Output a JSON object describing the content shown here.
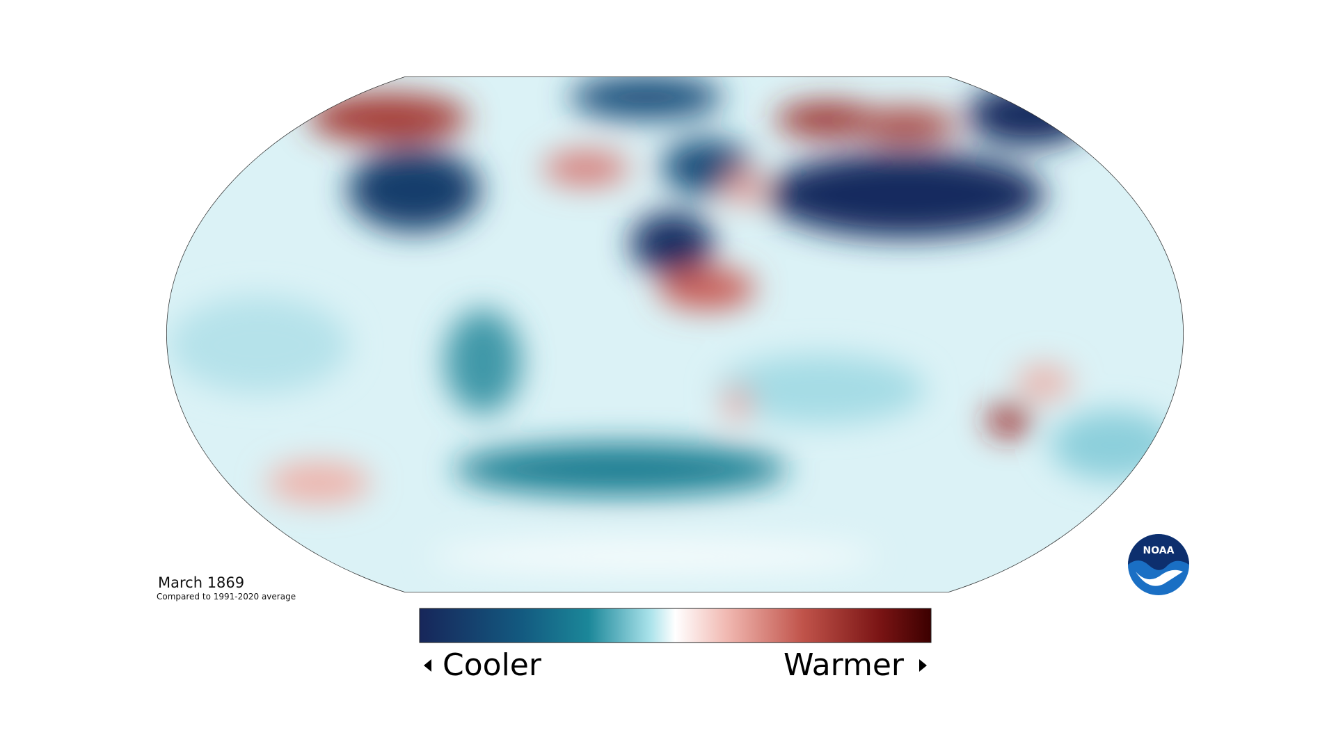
{
  "caption": {
    "title": "March 1869",
    "subtitle": "Compared to 1991-2020 average"
  },
  "legend": {
    "low": "Cooler",
    "high": "Warmer"
  },
  "logo": {
    "text": "NOAA"
  }
}
